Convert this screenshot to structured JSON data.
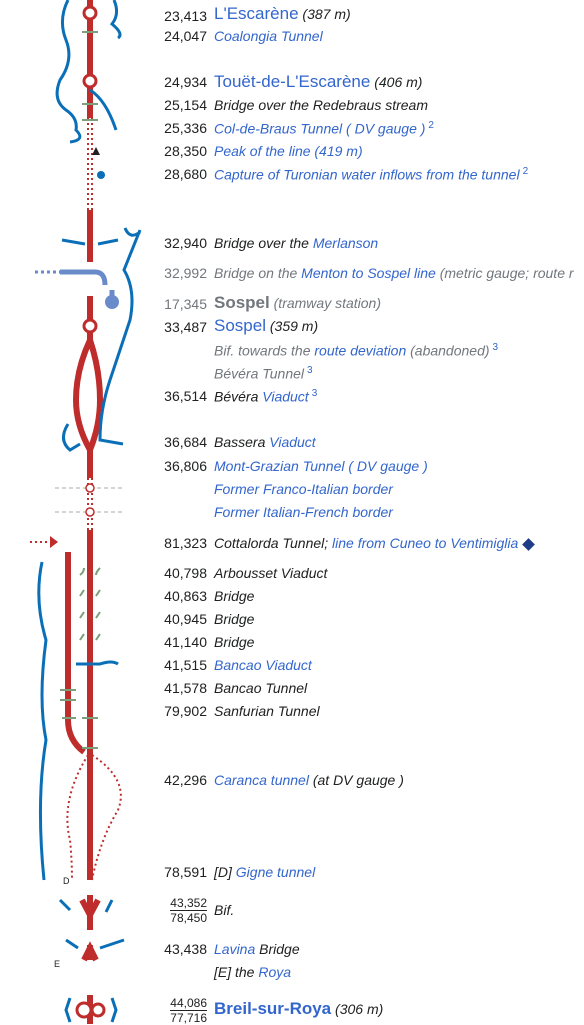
{
  "colors": {
    "track": "#be2d2c",
    "water": "#0b6fb8",
    "link": "#3366cc",
    "text": "#202122",
    "grey": "#72777d",
    "tram": "#6a8bc9",
    "tramIcon": "#1f3c88"
  },
  "rows": [
    {
      "km": "23,413",
      "name": "L'Escarène",
      "extra": "(387 m)"
    },
    {
      "km": "24,047",
      "text": "Coalongia Tunnel"
    },
    {
      "km": "24,934",
      "name": "Touët-de-L'Escarène",
      "extra": "(406 m)"
    },
    {
      "km": "25,154",
      "text": "Bridge over the Redebraus stream"
    },
    {
      "km": "25,336",
      "text": "Col-de-Braus Tunnel",
      "gauge": "( DV gauge )",
      "sup": "2"
    },
    {
      "km": "28,350",
      "text": "Peak of the line (419 m)"
    },
    {
      "km": "28,680",
      "text": "Capture of Turonian water inflows from the tunnel",
      "sup": "2"
    },
    {
      "km": "32,940",
      "text_a": "Bridge over the ",
      "link": "Merlanson"
    },
    {
      "km": "32,992",
      "text_a": "Bridge on the ",
      "link": "Menton to Sospel line",
      "text_b": " (metric gauge; route r"
    },
    {
      "km": "17,345",
      "name": "Sospel",
      "extra": "(tramway station)"
    },
    {
      "km": "33,487",
      "name": "Sospel",
      "extra": "(359 m)"
    },
    {
      "text_a": "Bif. towards the ",
      "link": "route deviation",
      "text_b": " (abandoned)",
      "sup": "3"
    },
    {
      "text": "Bévéra Tunnel",
      "sup": "3"
    },
    {
      "km": "36,514",
      "text_a": "Bévéra ",
      "link": "Viaduct",
      "sup": "3"
    },
    {
      "km": "36,684",
      "text_a": "Bassera ",
      "link": "Viaduct"
    },
    {
      "km": "36,806",
      "link": "Mont-Grazian Tunnel",
      "gauge": "( DV gauge )"
    },
    {
      "text": "Former Franco-Italian border"
    },
    {
      "text": "Former Italian-French border"
    },
    {
      "km": "81,323",
      "text_a": "Cottalorda Tunnel; ",
      "link": "line from Cuneo to Ventimiglia"
    },
    {
      "km": "40,798",
      "text": "Arbousset Viaduct"
    },
    {
      "km": "40,863",
      "text": "Bridge"
    },
    {
      "km": "40,945",
      "text": "Bridge"
    },
    {
      "km": "41,140",
      "text": "Bridge"
    },
    {
      "km": "41,515",
      "text": "Bancao Viaduct"
    },
    {
      "km": "41,578",
      "text": "Bancao Tunnel"
    },
    {
      "km": "79,902",
      "text": "Sanfurian Tunnel"
    },
    {
      "km": "42,296",
      "link": "Caranca tunnel",
      "text_b": " (at DV gauge )"
    },
    {
      "km": "78,591",
      "text_a": "[D] ",
      "link": "Gigne tunnel"
    },
    {
      "km_top": "43,352",
      "km_bottom": "78,450",
      "text": "Bif."
    },
    {
      "km": "43,438",
      "link": "Lavina",
      "text_b": " Bridge"
    },
    {
      "text_a": "[E] the ",
      "link": "Roya"
    },
    {
      "km_top": "44,086",
      "km_bottom": "77,716",
      "name": "Breil-sur-Roya",
      "extra": "(306 m)"
    }
  ],
  "diagram_labels": {
    "d": "D",
    "e": "E"
  }
}
